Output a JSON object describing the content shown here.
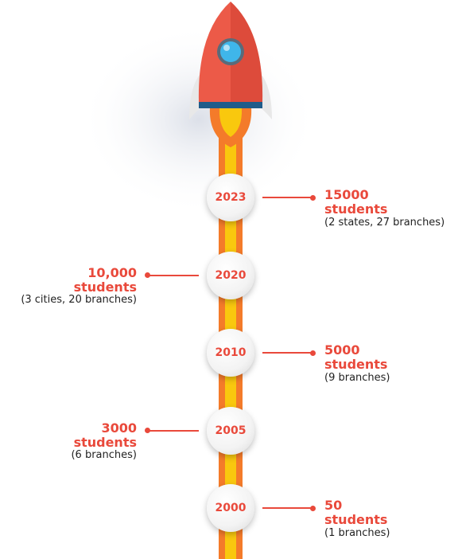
{
  "milestones": [
    {
      "year": "2023",
      "count": "15000",
      "unit": "students",
      "detail": "(2 states, 27 branches)",
      "side": "right"
    },
    {
      "year": "2020",
      "count": "10,000",
      "unit": "students",
      "detail": "(3 cities, 20 branches)",
      "side": "left"
    },
    {
      "year": "2010",
      "count": "5000",
      "unit": "students",
      "detail": "(9 branches)",
      "side": "right"
    },
    {
      "year": "2005",
      "count": "3000",
      "unit": "students",
      "detail": "(6 branches)",
      "side": "left"
    },
    {
      "year": "2000",
      "count": "50",
      "unit": "students",
      "detail": "(1 branches)",
      "side": "right"
    }
  ],
  "colors": {
    "accent": "#e9493b",
    "rocket_body": "#ec5a48",
    "rocket_dark": "#d24032",
    "window": "#3fb6ea",
    "band": "#1f5c8a",
    "fin": "#e8e8e8",
    "trail_orange": "#f47b2a",
    "trail_yellow": "#f9c80e"
  }
}
